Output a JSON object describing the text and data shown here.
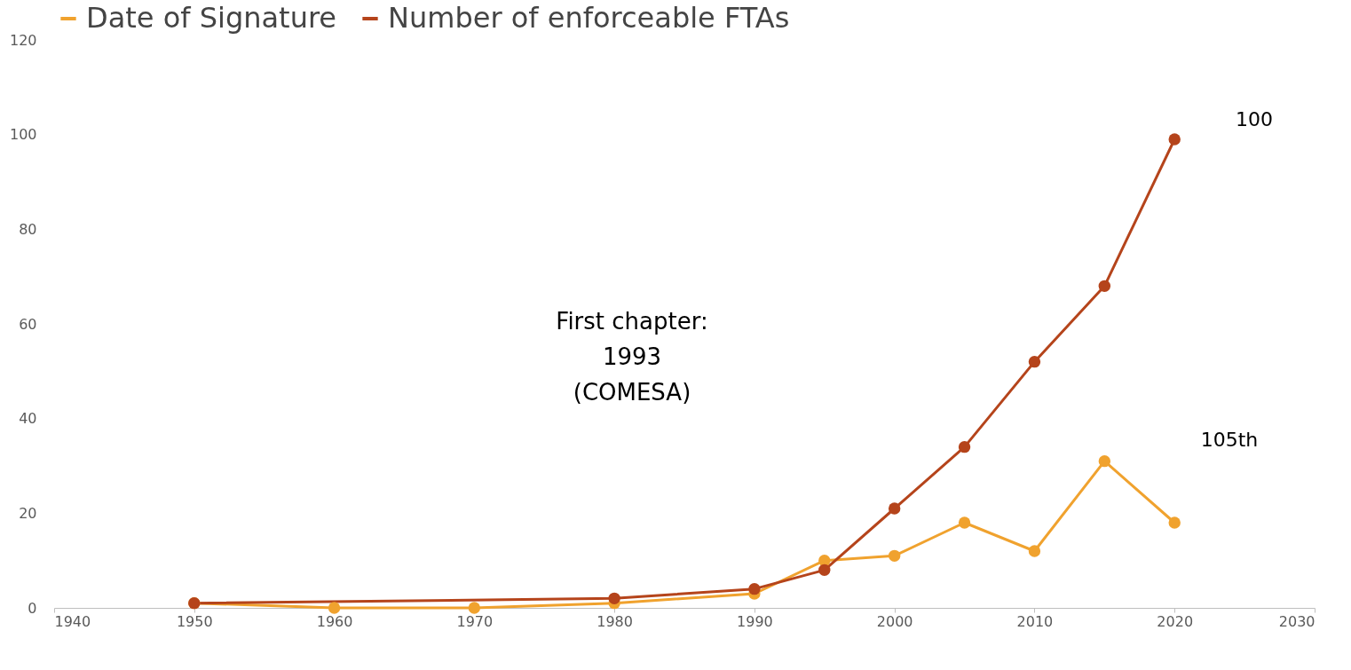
{
  "chart_data": {
    "type": "line",
    "x": [
      1950,
      1960,
      1970,
      1980,
      1990,
      1995,
      2000,
      2005,
      2010,
      2015,
      2020
    ],
    "series": [
      {
        "name": "Date of  Signature",
        "color": "#f0a22e",
        "values": [
          1,
          0,
          0,
          1,
          3,
          10,
          11,
          18,
          12,
          31,
          18
        ]
      },
      {
        "name": "Number of enforceable FTAs",
        "color": "#b5441b",
        "x": [
          1950,
          1980,
          1990,
          1995,
          2000,
          2005,
          2010,
          2015,
          2020
        ],
        "values": [
          1,
          2,
          4,
          8,
          21,
          34,
          52,
          68,
          99
        ]
      }
    ],
    "xlim": [
      1940,
      2030
    ],
    "xticks": [
      1940,
      1950,
      1960,
      1970,
      1980,
      1990,
      2000,
      2010,
      2020,
      2030
    ],
    "ylim": [
      0,
      120
    ],
    "yticks": [
      0,
      20,
      40,
      60,
      80,
      100,
      120
    ],
    "grid": false,
    "legend": "top",
    "marker": "circle",
    "line_style": "solid",
    "annotations": [
      "First chapter:\n1993\n(COMESA)",
      "100",
      "105th"
    ]
  }
}
